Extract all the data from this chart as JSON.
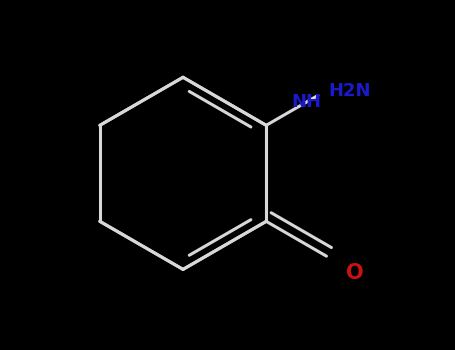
{
  "background_color": "#000000",
  "bond_color": "#d8d8d8",
  "bond_width": 2.2,
  "nh2_color": "#1a1acc",
  "nh_color": "#1a1acc",
  "o_color": "#cc1111",
  "nh2_label": "H2N",
  "nh_label": "NH",
  "o_label": "O",
  "font_size": 13,
  "font_weight": "bold",
  "fig_width": 4.55,
  "fig_height": 3.5,
  "dpi": 100
}
